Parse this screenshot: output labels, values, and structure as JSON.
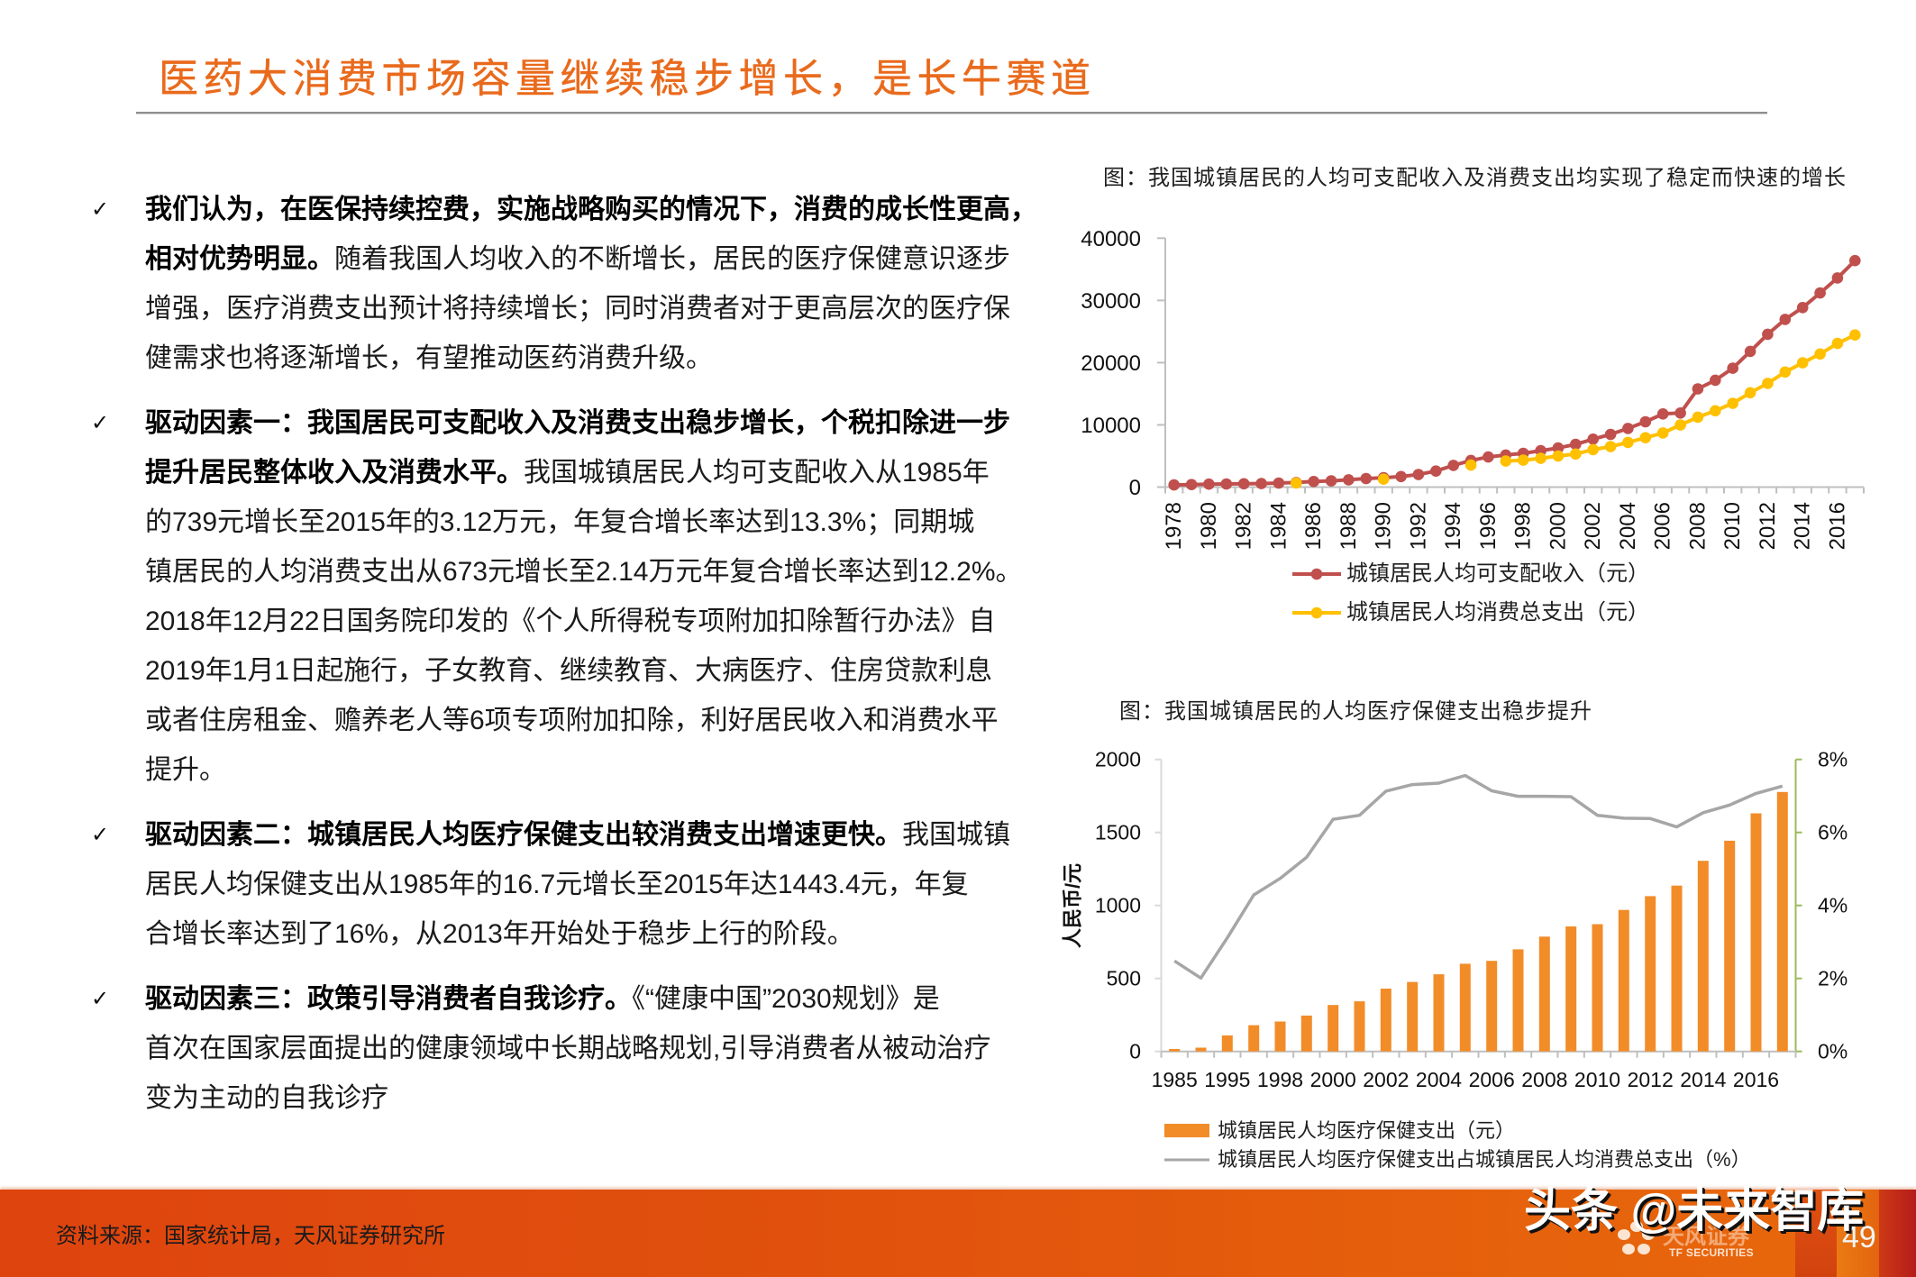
{
  "header": {
    "title": "医药大消费市场容量继续稳步增长，是长牛赛道"
  },
  "colors": {
    "title_orange": "#e96a1c",
    "rule_gray": "#8f8f8f",
    "footer_start": "#de440e",
    "footer_end": "#e8680c"
  },
  "content": {
    "bullet_glyph": "✓",
    "paragraphs": [
      {
        "lines": [
          {
            "bold": "我们认为，在医保持续控费，实施战略购买的情况下，消费的成长性更高，",
            "text": ""
          },
          {
            "bold": "相对优势明显。",
            "text": "随着我国人均收入的不断增长，居民的医疗保健意识逐步"
          },
          {
            "bold": "",
            "text": "增强，医疗消费支出预计将持续增长；同时消费者对于更高层次的医疗保"
          },
          {
            "bold": "",
            "text": "健需求也将逐渐增长，有望推动医药消费升级。"
          }
        ]
      },
      {
        "lines": [
          {
            "bold": "驱动因素一：我国居民可支配收入及消费支出稳步增长，个税扣除进一步",
            "text": ""
          },
          {
            "bold": "提升居民整体收入及消费水平。",
            "text": "我国城镇居民人均可支配收入从1985年"
          },
          {
            "bold": "",
            "text": "的739元增长至2015年的3.12万元，年复合增长率达到13.3%；同期城"
          },
          {
            "bold": "",
            "text": "镇居民的人均消费支出从673元增长至2.14万元年复合增长率达到12.2%。"
          },
          {
            "bold": "",
            "text": "2018年12月22日国务院印发的《个人所得税专项附加扣除暂行办法》自"
          },
          {
            "bold": "",
            "text": "2019年1月1日起施行，子女教育、继续教育、大病医疗、住房贷款利息"
          },
          {
            "bold": "",
            "text": "或者住房租金、赡养老人等6项专项附加扣除，利好居民收入和消费水平"
          },
          {
            "bold": "",
            "text": "提升。"
          }
        ]
      },
      {
        "lines": [
          {
            "bold": "驱动因素二：城镇居民人均医疗保健支出较消费支出增速更快。",
            "text": "我国城镇"
          },
          {
            "bold": "",
            "text": "居民人均保健支出从1985年的16.7元增长至2015年达1443.4元，年复"
          },
          {
            "bold": "",
            "text": "合增长率达到了16%，从2013年开始处于稳步上行的阶段。"
          }
        ]
      },
      {
        "lines": [
          {
            "bold": "驱动因素三：政策引导消费者自我诊疗。",
            "text": "《“健康中国”2030规划》是"
          },
          {
            "bold": "",
            "text": "首次在国家层面提出的健康领域中长期战略规划,引导消费者从被动治疗"
          },
          {
            "bold": "",
            "text": "变为主动的自我诊疗"
          }
        ]
      }
    ]
  },
  "chart_data": [
    {
      "type": "line",
      "title": "图：我国城镇居民的人均可支配收入及消费支出均实现了稳定而快速的增长",
      "xlabel": "",
      "ylabel": "",
      "x": [
        "1978",
        "1979",
        "1980",
        "1981",
        "1982",
        "1983",
        "1984",
        "1985",
        "1986",
        "1987",
        "1988",
        "1989",
        "1990",
        "1991",
        "1992",
        "1993",
        "1994",
        "1995",
        "1996",
        "1997",
        "1998",
        "1999",
        "2000",
        "2001",
        "2002",
        "2003",
        "2004",
        "2005",
        "2006",
        "2007",
        "2008",
        "2009",
        "2010",
        "2011",
        "2012",
        "2013",
        "2014",
        "2015",
        "2016",
        "2017"
      ],
      "x_tick_labels": [
        "1978",
        "1980",
        "1982",
        "1984",
        "1986",
        "1988",
        "1990",
        "1992",
        "1994",
        "1996",
        "1998",
        "2000",
        "2002",
        "2004",
        "2006",
        "2008",
        "2010",
        "2012",
        "2014",
        "2016"
      ],
      "ylim": [
        0,
        40000
      ],
      "yticks": [
        0,
        10000,
        20000,
        30000,
        40000
      ],
      "grid": false,
      "legend_position": "bottom",
      "series": [
        {
          "name": "城镇居民人均可支配收入（元）",
          "color": "#c0504d",
          "marker": "circle",
          "values": [
            343,
            405,
            478,
            500,
            535,
            565,
            652,
            739,
            901,
            1002,
            1180,
            1374,
            1510,
            1701,
            2027,
            2577,
            3496,
            4283,
            4839,
            5160,
            5425,
            5854,
            6280,
            6860,
            7703,
            8472,
            9422,
            10493,
            11760,
            11900,
            15781,
            17175,
            19109,
            21810,
            24565,
            26955,
            28844,
            31195,
            33616,
            36396
          ]
        },
        {
          "name": "城镇居民人均消费总支出（元）",
          "color": "#ffc000",
          "marker": "circle",
          "values": [
            null,
            null,
            null,
            null,
            null,
            null,
            null,
            673,
            null,
            null,
            null,
            null,
            1279,
            null,
            null,
            null,
            null,
            3538,
            null,
            4186,
            4332,
            4616,
            4998,
            5309,
            6030,
            6511,
            7182,
            7943,
            8697,
            9997,
            11243,
            12265,
            13471,
            15161,
            16674,
            18488,
            19968,
            21392,
            23079,
            24445
          ]
        }
      ]
    },
    {
      "type": "bar+line",
      "title": "图：我国城镇居民的人均医疗保健支出稳步提升",
      "xlabel": "",
      "ylabel": "人民币/元",
      "categories": [
        "1985",
        "1990",
        "1995",
        "1997",
        "1998",
        "1999",
        "2000",
        "2001",
        "2002",
        "2003",
        "2004",
        "2005",
        "2006",
        "2007",
        "2008",
        "2009",
        "2010",
        "2011",
        "2012",
        "2013",
        "2014",
        "2015",
        "2016",
        "2017"
      ],
      "x_tick_labels": [
        "1985",
        "1995",
        "1998",
        "2000",
        "2002",
        "2004",
        "2006",
        "2008",
        "2010",
        "2012",
        "2014",
        "2016"
      ],
      "ylim": [
        0,
        2000
      ],
      "yticks": [
        0,
        500,
        1000,
        1500,
        2000
      ],
      "y2lim": [
        0,
        8
      ],
      "y2ticks": [
        0,
        2,
        4,
        6,
        8
      ],
      "y2tick_labels": [
        "0%",
        "2%",
        "4%",
        "6%",
        "8%"
      ],
      "right_axis_color": "#9bbb59",
      "grid": false,
      "legend_position": "bottom",
      "series": [
        {
          "name": "城镇居民人均医疗保健支出（元）",
          "type": "bar",
          "axis": "left",
          "color": "#f28c28",
          "values": [
            16.7,
            25.7,
            110.1,
            179.7,
            205.2,
            245.6,
            318.1,
            343.3,
            430.1,
            476.0,
            528.2,
            600.9,
            620.5,
            699.1,
            786.2,
            856.4,
            871.8,
            969.0,
            1063.7,
            1136.1,
            1305.6,
            1443.4,
            1630.8,
            1777.4
          ]
        },
        {
          "name": "城镇居民人均医疗保健支出占城镇居民人均消费总支出（%）",
          "type": "line",
          "axis": "right",
          "color": "#a6a6a6",
          "values": [
            2.48,
            2.01,
            3.11,
            4.29,
            4.74,
            5.32,
            6.36,
            6.47,
            7.13,
            7.31,
            7.35,
            7.56,
            7.14,
            6.99,
            6.99,
            6.98,
            6.47,
            6.39,
            6.38,
            6.15,
            6.54,
            6.75,
            7.07,
            7.27
          ]
        }
      ]
    }
  ],
  "footer": {
    "source": "资料来源：国家统计局，天风证券研究所",
    "logo_icon": "tf-securities-flower-icon",
    "logo_cn": "天风证券",
    "logo_en": "TF SECURITIES",
    "watermark": "头条 @未来智库",
    "page_number": "49"
  }
}
